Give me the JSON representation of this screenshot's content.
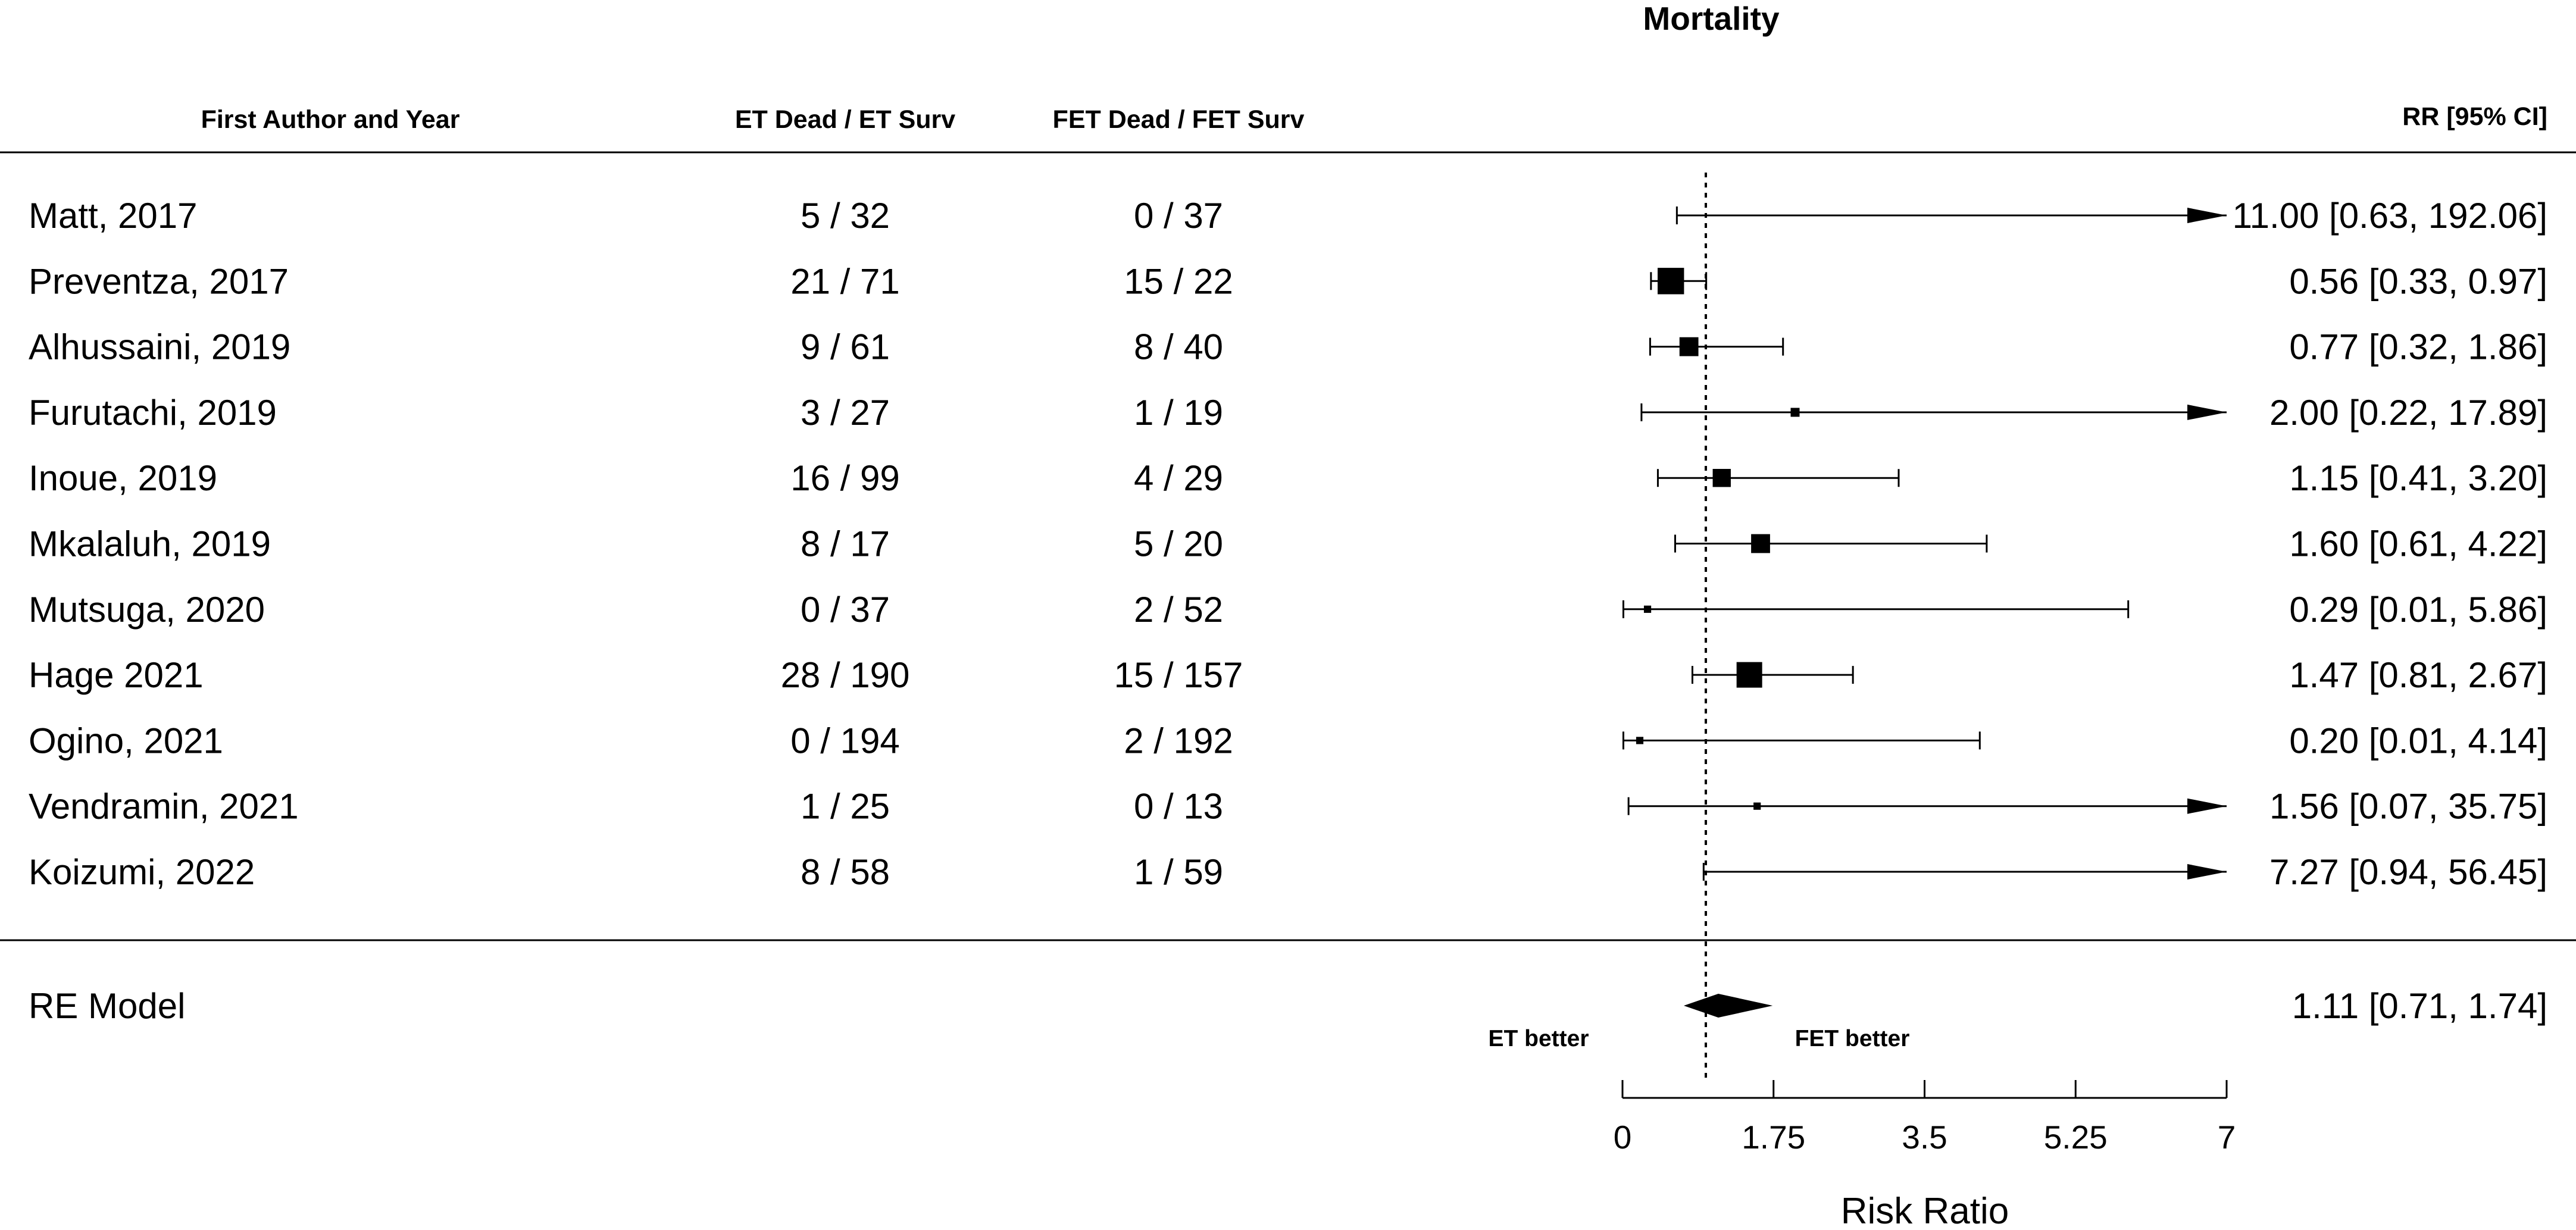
{
  "chart_data": {
    "type": "forest",
    "title": "Mortality",
    "columns": {
      "study": "First Author and Year",
      "et": "ET Dead / ET Surv",
      "fet": "FET Dead / FET Surv",
      "rr": "RR [95% CI]"
    },
    "studies": [
      {
        "label": "Matt, 2017",
        "et": "5 / 32",
        "fet": "0 / 37",
        "rr": 11.0,
        "lo": 0.63,
        "hi": 192.06,
        "rr_text": "11.00 [0.63, 192.06]",
        "weight": 0.5
      },
      {
        "label": "Preventza, 2017",
        "et": "21 / 71",
        "fet": "15 / 22",
        "rr": 0.56,
        "lo": 0.33,
        "hi": 0.97,
        "rr_text": "0.56 [0.33,   0.97]",
        "weight": 2.6
      },
      {
        "label": "Alhussaini, 2019",
        "et": "9 / 61",
        "fet": "8 / 40",
        "rr": 0.77,
        "lo": 0.32,
        "hi": 1.86,
        "rr_text": "0.77 [0.32,   1.86]",
        "weight": 1.7
      },
      {
        "label": "Furutachi, 2019",
        "et": "3 / 27",
        "fet": "1 / 19",
        "rr": 2.0,
        "lo": 0.22,
        "hi": 17.89,
        "rr_text": "2.00 [0.22, 17.89]",
        "weight": 0.5
      },
      {
        "label": "Inoue, 2019",
        "et": "16 / 99",
        "fet": "4 / 29",
        "rr": 1.15,
        "lo": 0.41,
        "hi": 3.2,
        "rr_text": "1.15 [0.41,   3.20]",
        "weight": 1.6
      },
      {
        "label": "Mkalaluh, 2019",
        "et": "8 / 17",
        "fet": "5 / 20",
        "rr": 1.6,
        "lo": 0.61,
        "hi": 4.22,
        "rr_text": "1.60 [0.61,   4.22]",
        "weight": 1.7
      },
      {
        "label": "Mutsuga, 2020",
        "et": "0 / 37",
        "fet": "2 / 52",
        "rr": 0.29,
        "lo": 0.01,
        "hi": 5.86,
        "rr_text": "0.29 [0.01,   5.86]",
        "weight": 0.3
      },
      {
        "label": "Hage 2021",
        "et": "28 / 190",
        "fet": "15 / 157",
        "rr": 1.47,
        "lo": 0.81,
        "hi": 2.67,
        "rr_text": "1.47 [0.81,   2.67]",
        "weight": 2.5
      },
      {
        "label": "Ogino, 2021",
        "et": "0 / 194",
        "fet": "2 / 192",
        "rr": 0.2,
        "lo": 0.01,
        "hi": 4.14,
        "rr_text": "0.20 [0.01,   4.14]",
        "weight": 0.3
      },
      {
        "label": "Vendramin, 2021",
        "et": "1 / 25",
        "fet": "0 / 13",
        "rr": 1.56,
        "lo": 0.07,
        "hi": 35.75,
        "rr_text": "1.56 [0.07, 35.75]",
        "weight": 0.3
      },
      {
        "label": "Koizumi, 2022",
        "et": "8 / 58",
        "fet": "1 / 59",
        "rr": 7.27,
        "lo": 0.94,
        "hi": 56.45,
        "rr_text": "7.27 [0.94, 56.45]",
        "weight": 0.3
      }
    ],
    "pooled": {
      "label": "RE Model",
      "rr": 1.11,
      "lo": 0.71,
      "hi": 1.74,
      "rr_text": "1.11 [0.71,   1.74]"
    },
    "reference_line": 1,
    "xlim": [
      0,
      7
    ],
    "xticks": [
      0,
      1.75,
      3.5,
      5.25,
      7
    ],
    "xtick_labels": [
      "0",
      "1.75",
      "3.5",
      "5.25",
      "7"
    ],
    "xlabel": "Risk Ratio",
    "favours_left": "ET better",
    "favours_right": "FET better"
  }
}
